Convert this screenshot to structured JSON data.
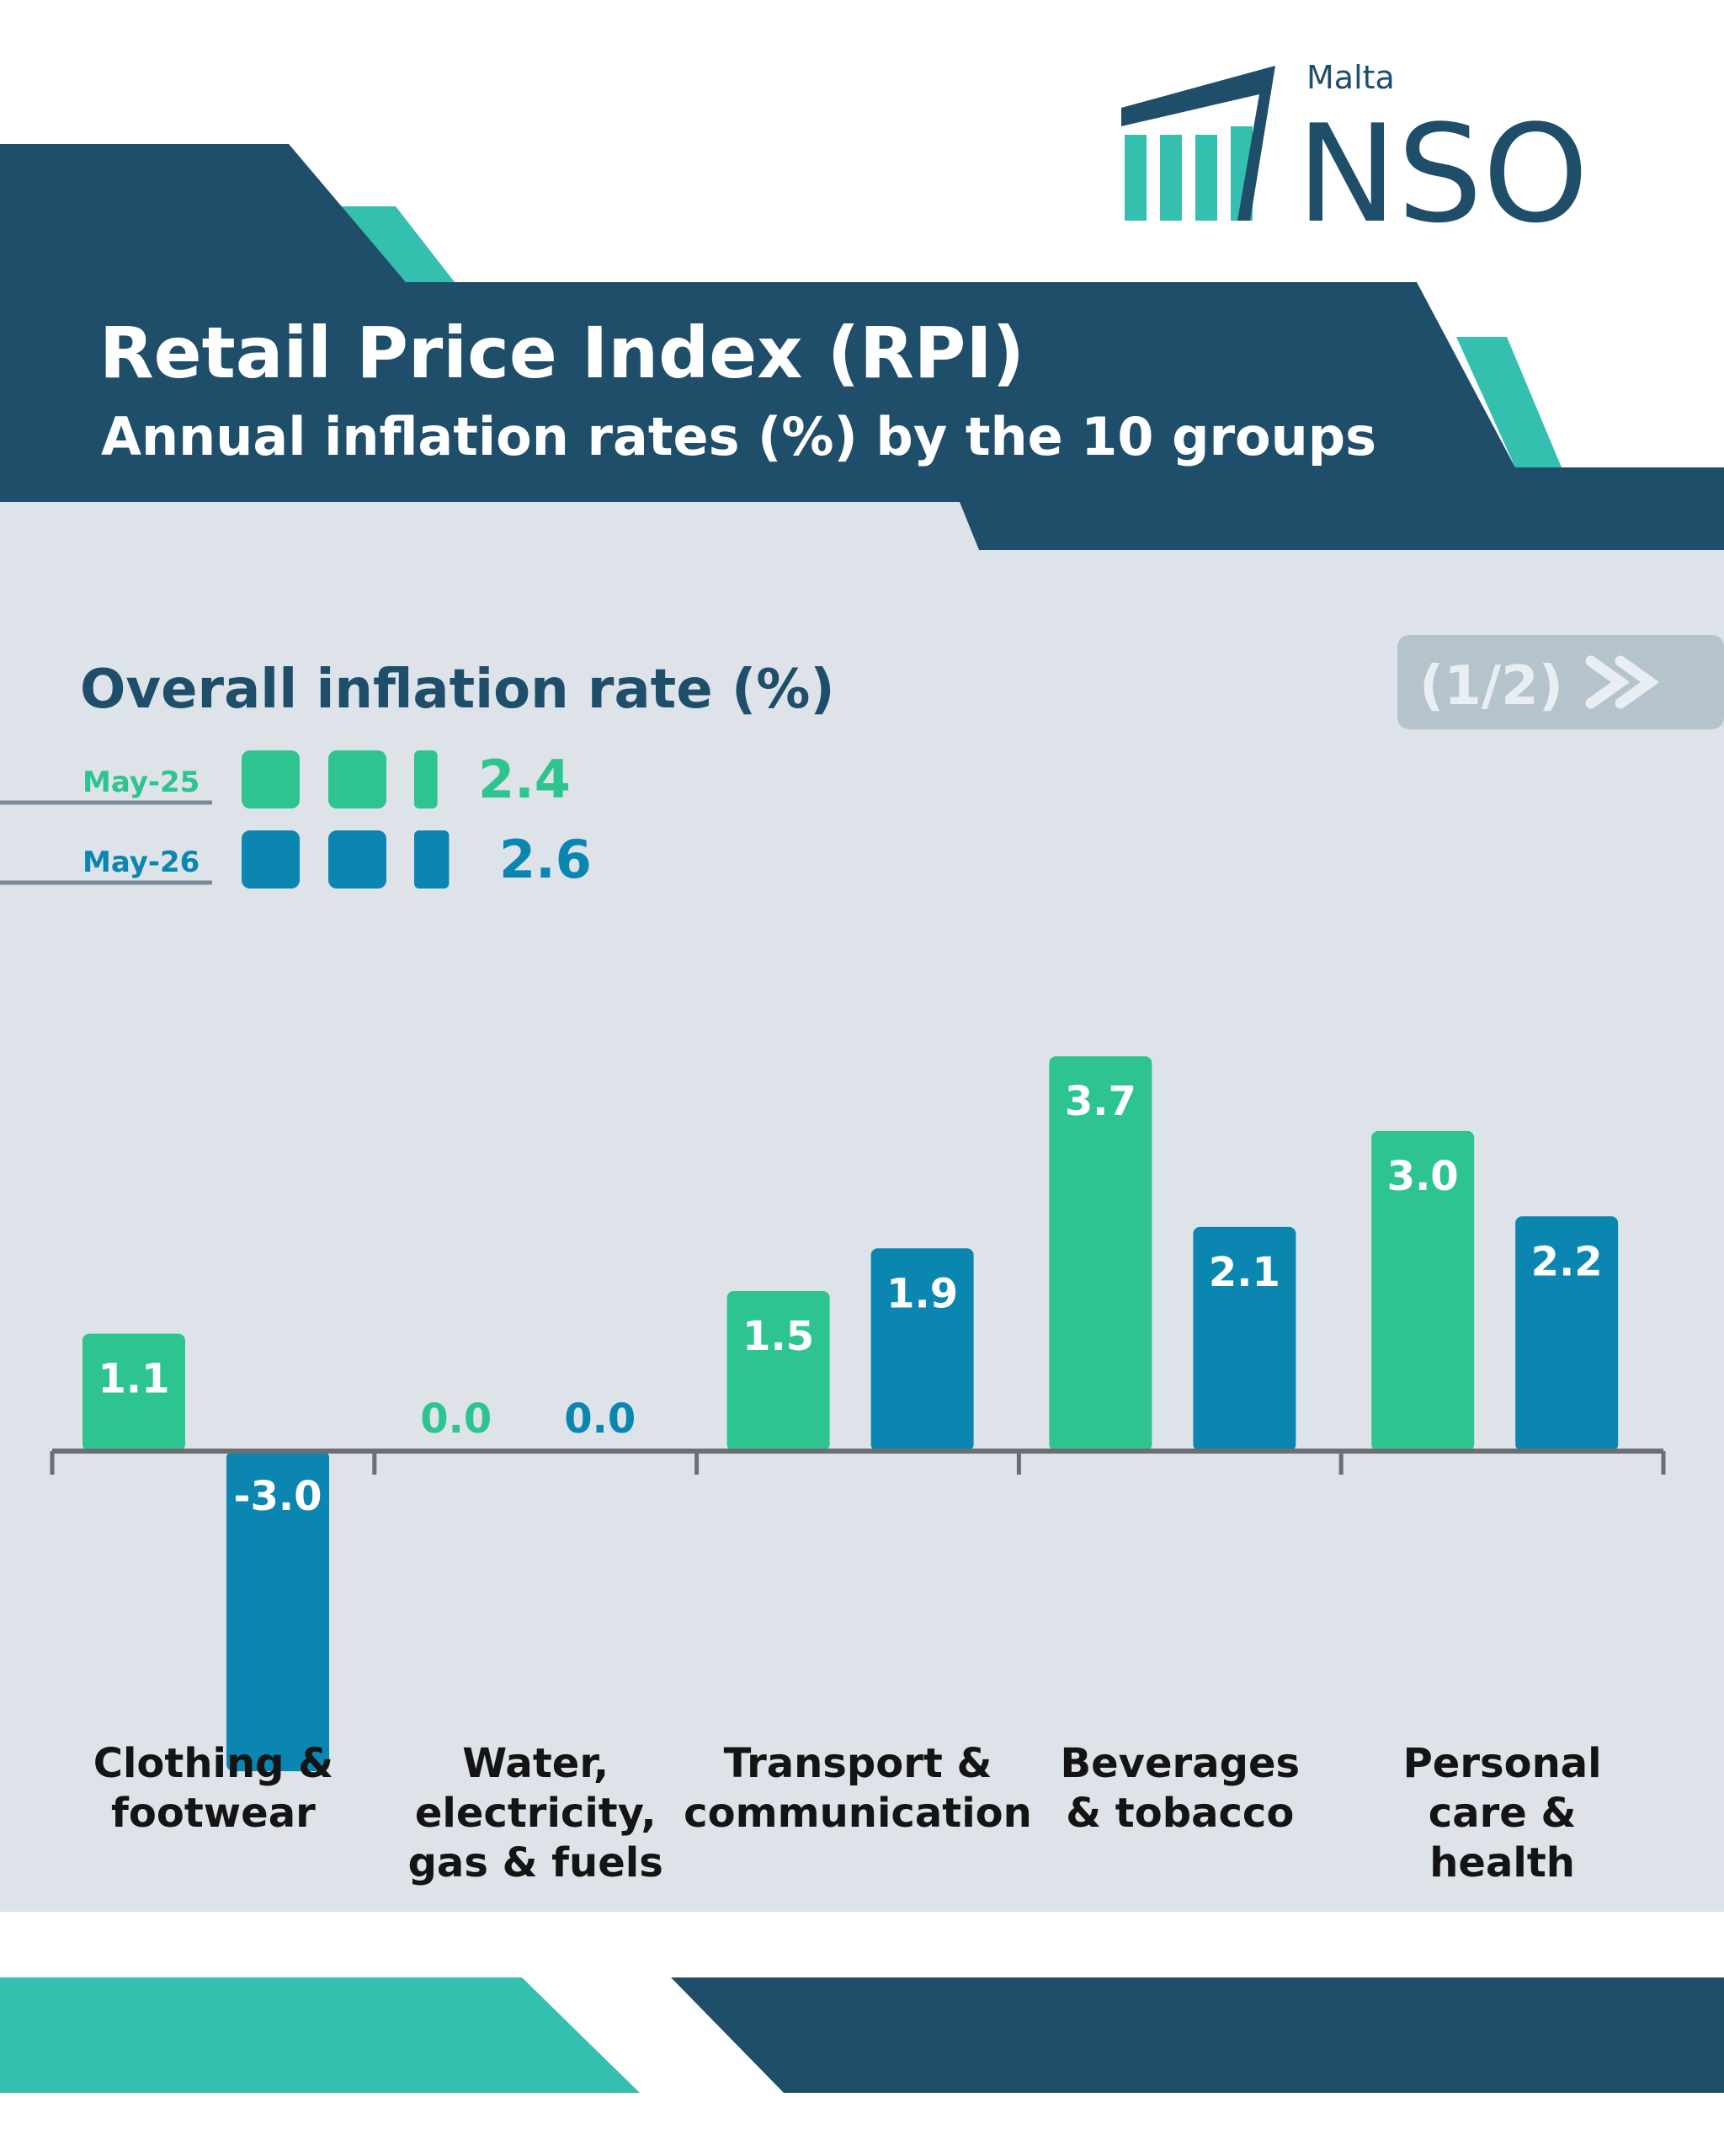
{
  "header": {
    "brand_small": "Malta",
    "brand": "NSO",
    "title": "Retail Price Index (RPI)",
    "subtitle": "Annual inflation rates (%) by the 10 groups"
  },
  "pager": "(1/2)",
  "chart_data": {
    "type": "bar",
    "overall_title": "Overall inflation rate (%)",
    "categories": [
      "Clothing &\nfootwear",
      "Water,\nelectricity,\ngas & fuels",
      "Transport &\ncommunication",
      "Beverages\n& tobacco",
      "Personal\ncare &\nhealth"
    ],
    "series": [
      {
        "name": "May-25",
        "color": "#2ec490",
        "overall": 2.4,
        "values": [
          1.1,
          0,
          1.5,
          3.7,
          3
        ],
        "value_labels": [
          "1.1",
          "0.0",
          "1.5",
          "3.7",
          "3.0"
        ]
      },
      {
        "name": "May-26",
        "color": "#0a86b0",
        "overall": 2.6,
        "values": [
          -3,
          0,
          1.9,
          2.1,
          2.2
        ],
        "value_labels": [
          "-3.0",
          "0.0",
          "1.9",
          "2.1",
          "2.2"
        ]
      }
    ]
  }
}
